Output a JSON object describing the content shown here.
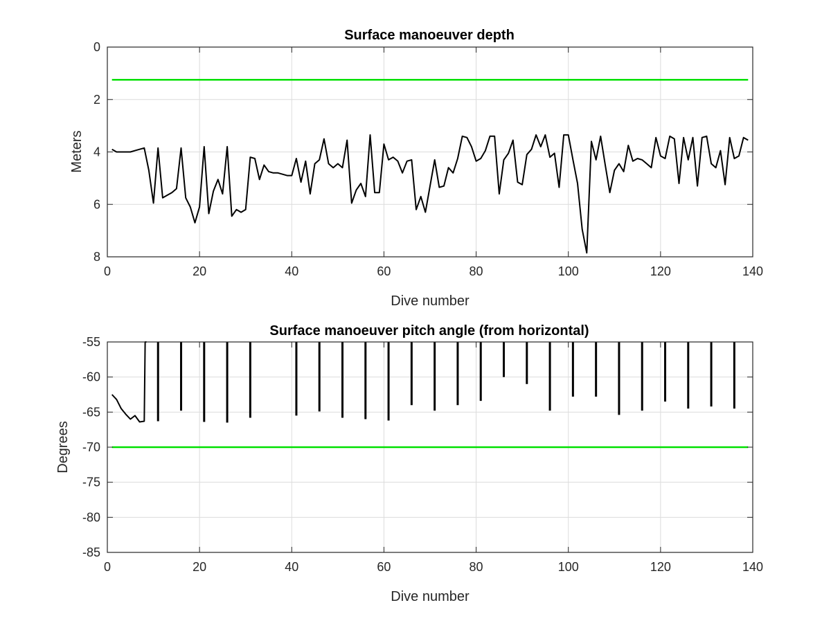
{
  "chart_data": [
    {
      "type": "line",
      "title": "Surface manoeuver depth",
      "xlabel": "Dive number",
      "ylabel": "Meters",
      "xlim": [
        0,
        140
      ],
      "ylim": [
        0,
        8
      ],
      "y_reversed": true,
      "grid": true,
      "xticks": [
        "0",
        "20",
        "40",
        "60",
        "80",
        "100",
        "120",
        "140"
      ],
      "yticks": [
        "0",
        "2",
        "4",
        "6",
        "8"
      ],
      "series": [
        {
          "color": "#000000",
          "x": [
            1,
            2,
            3,
            4,
            5,
            6,
            7,
            8,
            9,
            10,
            11,
            12,
            13,
            14,
            15,
            16,
            17,
            18,
            19,
            20,
            21,
            22,
            23,
            24,
            25,
            26,
            27,
            28,
            29,
            30,
            31,
            32,
            33,
            34,
            35,
            36,
            37,
            38,
            39,
            40,
            41,
            42,
            43,
            44,
            45,
            46,
            47,
            48,
            49,
            50,
            51,
            52,
            53,
            54,
            55,
            56,
            57,
            58,
            59,
            60,
            61,
            62,
            63,
            64,
            65,
            66,
            67,
            68,
            69,
            70,
            71,
            72,
            73,
            74,
            75,
            76,
            77,
            78,
            79,
            80,
            81,
            82,
            83,
            84,
            85,
            86,
            87,
            88,
            89,
            90,
            91,
            92,
            93,
            94,
            95,
            96,
            97,
            98,
            99,
            100,
            101,
            102,
            103,
            104,
            105,
            106,
            107,
            108,
            109,
            110,
            111,
            112,
            113,
            114,
            115,
            116,
            117,
            118,
            119,
            120,
            121,
            122,
            123,
            124,
            125,
            126,
            127,
            128,
            129,
            130,
            131,
            132,
            133,
            134,
            135,
            136,
            137,
            138,
            139
          ],
          "y": [
            3.9,
            4.0,
            4.0,
            4.0,
            4.0,
            3.95,
            3.9,
            3.85,
            4.7,
            5.95,
            3.85,
            5.75,
            5.65,
            5.55,
            5.4,
            3.85,
            5.75,
            6.1,
            6.7,
            6.1,
            3.8,
            6.35,
            5.5,
            5.05,
            5.6,
            3.8,
            6.45,
            6.2,
            6.3,
            6.2,
            4.2,
            4.25,
            5.05,
            4.5,
            4.75,
            4.8,
            4.8,
            4.85,
            4.9,
            4.9,
            4.25,
            5.15,
            4.35,
            5.6,
            4.45,
            4.3,
            3.5,
            4.45,
            4.6,
            4.45,
            4.6,
            3.55,
            5.95,
            5.45,
            5.2,
            5.7,
            3.35,
            5.55,
            5.55,
            3.7,
            4.3,
            4.2,
            4.35,
            4.8,
            4.35,
            4.3,
            6.2,
            5.7,
            6.3,
            5.3,
            4.3,
            5.35,
            5.3,
            4.6,
            4.8,
            4.25,
            3.4,
            3.45,
            3.8,
            4.35,
            4.25,
            3.95,
            3.4,
            3.4,
            5.6,
            4.3,
            4.05,
            3.55,
            5.15,
            5.25,
            4.1,
            3.9,
            3.35,
            3.8,
            3.35,
            4.2,
            4.05,
            5.35,
            3.35,
            3.35,
            4.3,
            5.2,
            6.95,
            7.85,
            3.6,
            4.3,
            3.4,
            4.5,
            5.55,
            4.7,
            4.45,
            4.75,
            3.75,
            4.35,
            4.25,
            4.3,
            4.45,
            4.6,
            3.45,
            4.15,
            4.25,
            3.4,
            3.5,
            5.2,
            3.45,
            4.3,
            3.45,
            5.3,
            3.45,
            3.4,
            4.45,
            4.6,
            3.95,
            5.25,
            3.45,
            4.25,
            4.15,
            3.45,
            3.55
          ]
        },
        {
          "color": "#00e000",
          "x": [
            1,
            139
          ],
          "y": [
            1.25,
            1.25
          ]
        }
      ]
    },
    {
      "type": "line",
      "title": "Surface manoeuver pitch angle (from horizontal)",
      "xlabel": "Dive number",
      "ylabel": "Degrees",
      "xlim": [
        0,
        140
      ],
      "ylim": [
        -85,
        -55
      ],
      "grid": true,
      "xticks": [
        "0",
        "20",
        "40",
        "60",
        "80",
        "100",
        "120",
        "140"
      ],
      "yticks": [
        "-55",
        "-60",
        "-65",
        "-70",
        "-75",
        "-80",
        "-85"
      ],
      "series": [
        {
          "color": "#000000",
          "x": [
            1,
            2,
            3,
            4,
            5,
            6,
            7,
            8,
            8.2,
            8.5
          ],
          "y": [
            -62.5,
            -63.2,
            -64.5,
            -65.3,
            -66.0,
            -65.5,
            -66.4,
            -66.3,
            -55,
            -55
          ]
        },
        {
          "color": "#000000",
          "x": [
            11,
            16,
            21,
            26,
            31,
            41,
            46,
            51,
            56,
            61,
            66,
            71,
            76,
            81,
            86,
            91,
            96,
            101,
            106,
            111,
            116,
            121,
            126,
            131,
            136
          ],
          "y": [
            -66.3,
            -64.8,
            -66.4,
            -66.5,
            -65.8,
            -65.5,
            -64.9,
            -65.8,
            -66.0,
            -66.2,
            -64.0,
            -64.8,
            -64.0,
            -63.4,
            -60.0,
            -61.0,
            -64.8,
            -62.8,
            -62.8,
            -65.4,
            -64.8,
            -63.5,
            -64.5,
            -64.2,
            -64.5
          ]
        },
        {
          "color": "#00e000",
          "x": [
            1,
            139
          ],
          "y": [
            -70,
            -70
          ]
        }
      ]
    }
  ]
}
